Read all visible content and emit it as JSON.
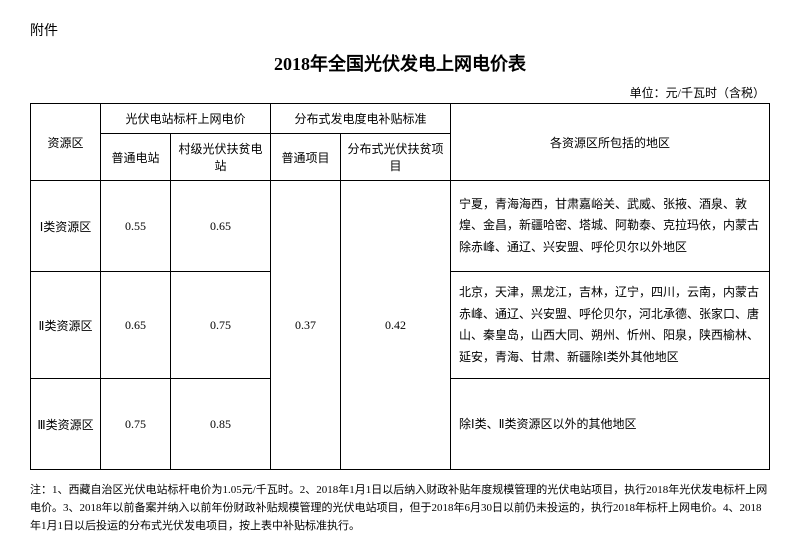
{
  "attachment_label": "附件",
  "title": "2018年全国光伏发电上网电价表",
  "unit": "单位：元/千瓦时（含税）",
  "headers": {
    "zone": "资源区",
    "benchmark_group": "光伏电站标杆上网电价",
    "distributed_group": "分布式发电度电补贴标准",
    "regions": "各资源区所包括的地区",
    "normal_station": "普通电站",
    "village_station": "村级光伏扶贫电站",
    "normal_project": "普通项目",
    "distributed_poverty": "分布式光伏扶贫项目"
  },
  "rows": [
    {
      "zone": "Ⅰ类资源区",
      "normal": "0.55",
      "village": "0.65",
      "regions": "宁夏，青海海西，甘肃嘉峪关、武威、张掖、酒泉、敦煌、金昌，新疆哈密、塔城、阿勒泰、克拉玛依，内蒙古除赤峰、通辽、兴安盟、呼伦贝尔以外地区"
    },
    {
      "zone": "Ⅱ类资源区",
      "normal": "0.65",
      "village": "0.75",
      "regions": "北京，天津，黑龙江，吉林，辽宁，四川，云南，内蒙古赤峰、通辽、兴安盟、呼伦贝尔，河北承德、张家口、唐山、秦皇岛，山西大同、朔州、忻州、阳泉，陕西榆林、延安，青海、甘肃、新疆除Ⅰ类外其他地区"
    },
    {
      "zone": "Ⅲ类资源区",
      "normal": "0.75",
      "village": "0.85",
      "regions": "除Ⅰ类、Ⅱ类资源区以外的其他地区"
    }
  ],
  "shared": {
    "normal_project": "0.37",
    "distributed_poverty": "0.42"
  },
  "notes": "注：1、西藏自治区光伏电站标杆电价为1.05元/千瓦时。2、2018年1月1日以后纳入财政补贴年度规模管理的光伏电站项目，执行2018年光伏发电标杆上网电价。3、2018年以前备案并纳入以前年份财政补贴规模管理的光伏电站项目，但于2018年6月30日以前仍未投运的，执行2018年标杆上网电价。4、2018年1月1日以后投运的分布式光伏发电项目，按上表中补贴标准执行。"
}
